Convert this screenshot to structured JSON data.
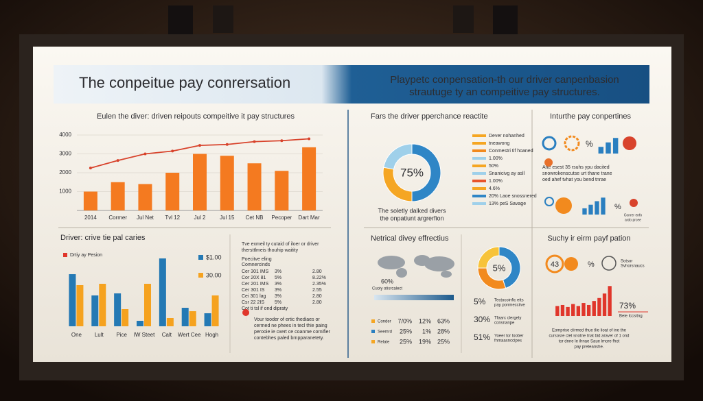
{
  "header": {
    "title": "The conpeitue pay conrersation",
    "subtitle_lines": [
      "Playpetc conpensation-th our driver canpenbasion",
      "strautuge ty an compeitive pay structures."
    ]
  },
  "chart_data": [
    {
      "type": "bar_line",
      "title": "Eulen the diver: driven reipouts compeitive it pay structures",
      "categories": [
        "2014",
        "Cormer",
        "Jul Net",
        "Tvl 12",
        "Jul 2",
        "Jul 15",
        "Cet NB",
        "Pecoper",
        "Dart Mar"
      ],
      "series": [
        {
          "color": "#f47a20",
          "values": [
            1000,
            1500,
            1400,
            2000,
            3000,
            2900,
            2500,
            2100,
            3350
          ]
        },
        {
          "color": "#d8432c",
          "values": [
            2250,
            2650,
            3000,
            3150,
            3450,
            3500,
            3650,
            3700,
            3800
          ]
        }
      ],
      "ylim": [
        0,
        4000
      ],
      "yticks": [
        1000,
        2000,
        3000,
        4000
      ]
    },
    {
      "type": "grouped_bar",
      "title": "Driver: crive tie pal caries",
      "note": "Drtiy ay Pesion",
      "categories": [
        "One",
        "Lult",
        "Pice",
        "IW Steet",
        "Calt",
        "Wert Cee",
        "Hogh"
      ],
      "series": [
        {
          "name": "$1.00",
          "color": "#2479b4",
          "values": [
            76,
            45,
            48,
            8,
            99,
            27,
            19
          ]
        },
        {
          "name": "30.00",
          "color": "#f5a21f",
          "values": [
            60,
            62,
            25,
            62,
            12,
            22,
            45
          ]
        }
      ],
      "ylim": [
        0,
        100
      ]
    },
    {
      "type": "donut",
      "title": "Fars the driver pperchance reactite",
      "center_label": "75%",
      "values": [
        50,
        28,
        22
      ],
      "colors": [
        "#2f86c6",
        "#f5a623",
        "#9fd0ea"
      ],
      "caption": [
        "The soletly dalked divers",
        "the onpatiunt argrerfion"
      ]
    },
    {
      "type": "donut",
      "center_label": "5%",
      "values": [
        45,
        30,
        25
      ],
      "colors": [
        "#2f86c6",
        "#f28a1e",
        "#f7c33a"
      ]
    },
    {
      "type": "bar",
      "color": "#e0362b",
      "values": [
        20,
        22,
        18,
        24,
        20,
        26,
        22,
        30,
        36,
        45,
        60
      ],
      "ylim": [
        0,
        70
      ],
      "label": "73%",
      "sublabel": "Beie lccsitng"
    },
    {
      "type": "bar",
      "color": "#2a7fc0",
      "values": [
        30,
        50,
        70
      ],
      "ylim": [
        0,
        80
      ]
    },
    {
      "type": "bar",
      "color": "#2a7fc0",
      "values": [
        35,
        55,
        75,
        95
      ],
      "ylim": [
        0,
        100
      ]
    }
  ],
  "panels": {
    "donut_notes": [
      {
        "text": "Dever nohanhed",
        "color": "#f5a623"
      },
      {
        "text": "tneawong",
        "color": "#f5a623"
      },
      {
        "text": "Conmestri tif hoaned",
        "color": "#f28a1e"
      },
      {
        "text": "1.00%",
        "color": "#9fd0ea"
      },
      {
        "text": "50%",
        "color": "#f5a623"
      },
      {
        "text": "Snanicivg ay asll",
        "color": "#9fd0ea"
      },
      {
        "text": "1.00%",
        "color": "#e8542b"
      },
      {
        "text": "4.6%",
        "color": "#f5a623"
      },
      {
        "text": "20% Laoe snossnered",
        "color": "#2f86c6"
      },
      {
        "text": "13% peS Savage",
        "color": "#9fd0ea"
      }
    ],
    "top_right": {
      "title": "Inturthe pay conpertines",
      "percent_a": "%",
      "percent_b": "%",
      "body": [
        "Afte esest 35 rsuhs ypu dacited",
        "snowrokenscutse urt thane trane",
        "oed ahef tvhat you bend tnrae"
      ],
      "foot": [
        "Conrer enfo",
        "ardo prcee"
      ]
    },
    "bottom_left": {
      "intro": [
        "Tve exmeil ty cuIaid of iloer or driver",
        "thersttlmeis thouhip waitity"
      ],
      "table_head": [
        "Poecitve eling",
        "Comnercinds"
      ],
      "table": [
        [
          "Cer 301 IMS",
          "3%",
          "2.80"
        ],
        [
          "Cor 20X 81",
          "5%",
          "8.22%"
        ],
        [
          "Cer 201 IMS",
          "3%",
          "2.35%"
        ],
        [
          "Cer 301 IS",
          "3%",
          "2.55"
        ],
        [
          "Cei 301 lag",
          "3%",
          "2.80"
        ],
        [
          "Csr 22 2IS",
          "5%",
          "2.80"
        ]
      ],
      "table_foot": "Cot ti tsl if ond dipraty",
      "note": [
        "Vour tooder of ertic thediaes or",
        "cermed ne phees in tecl thie paing",
        "perooie ie cxert ce coanme cornifier",
        "contebhes paled brnpparanetety."
      ]
    },
    "middle_bottom": {
      "title": "Netrical divey effrectius",
      "map_value": "60%",
      "strip_label": "Cuoiy otisrcalect",
      "rows": [
        [
          "Conder",
          "7/0%",
          "12%",
          "63%"
        ],
        [
          "Seemrd",
          "25%",
          "1%",
          "28%"
        ],
        [
          "Relate",
          "25%",
          "19%",
          "25%"
        ]
      ],
      "row_colors": [
        "#f5a623",
        "#2a7fc0",
        "#f5a623"
      ]
    },
    "donut2_notes": [
      {
        "value": "5%",
        "lines": [
          "Tectocoinfic etts",
          "pay ponmecciive"
        ]
      },
      {
        "value": "30%",
        "lines": [
          "Tfaarc clergely",
          "consnanpe"
        ]
      },
      {
        "value": "51%",
        "lines": [
          "Yoeer tor loober",
          "fnmaasnccipes"
        ]
      }
    ],
    "bottom_right": {
      "title": "Suchy ir eirm payf pation",
      "stat": "43",
      "stat_pct": "%",
      "globe_text": [
        "Sotsor",
        "Svhorsnaucs"
      ],
      "body": [
        "Eomprise clirmed thue tlie lioat of ine the",
        "cursosre clet snotne tnat bid araver of 1 ond",
        "tor dnne le ihnae Saue lmore fhot",
        "pay preteanshe."
      ]
    }
  }
}
